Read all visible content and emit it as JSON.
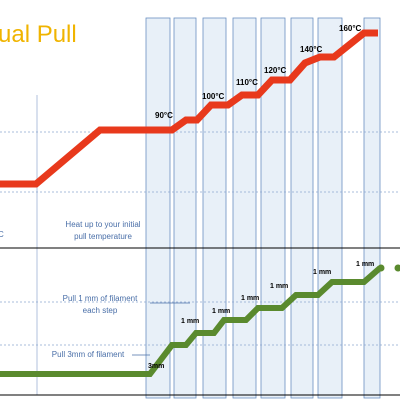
{
  "title": "ual Pull",
  "left_label": "C",
  "temperatures": [
    "90°C",
    "100°C",
    "110°C",
    "120°C",
    "140°C",
    "160°C"
  ],
  "notes": {
    "heat": [
      "Heat up to your initial",
      "pull temperature"
    ],
    "pull_step": [
      "Pull 1 mm of filament",
      "each step"
    ],
    "pull_initial": "Pull 3mm of filament"
  },
  "initial_pull": "3mm",
  "step_pulls": [
    "1 mm",
    "1 mm",
    "1 mm",
    "1 mm",
    "1 mm",
    "1 mm"
  ]
}
